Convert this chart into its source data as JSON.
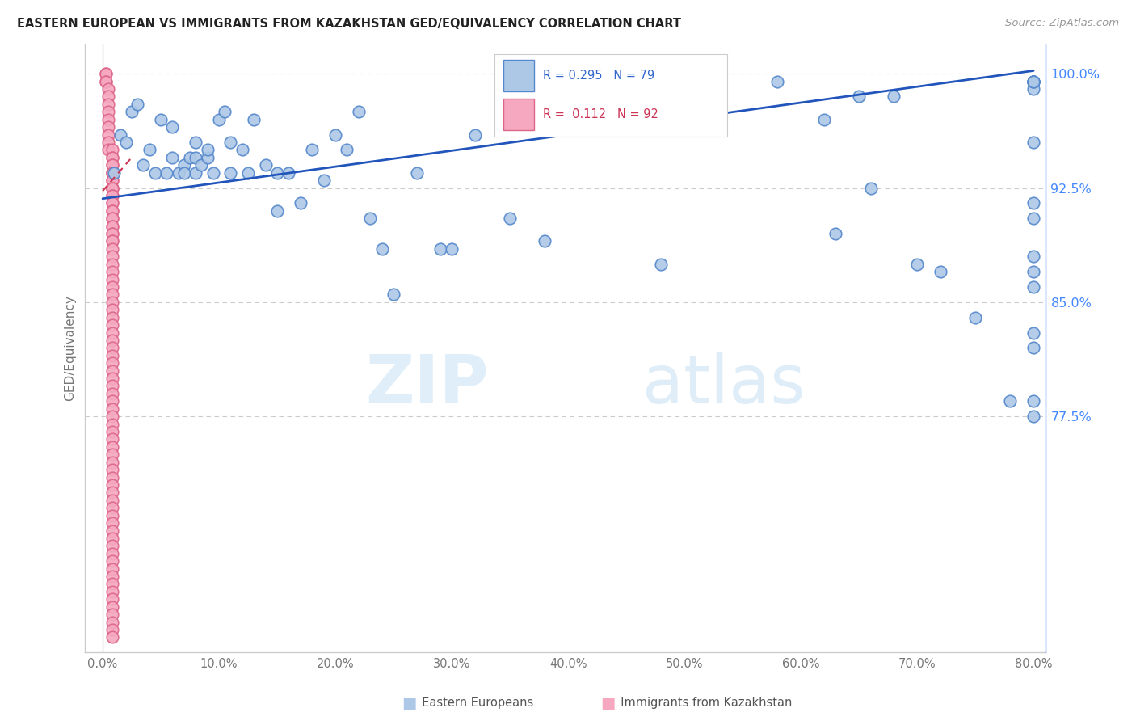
{
  "title": "EASTERN EUROPEAN VS IMMIGRANTS FROM KAZAKHSTAN GED/EQUIVALENCY CORRELATION CHART",
  "source": "Source: ZipAtlas.com",
  "ylabel": "GED/Equivalency",
  "R_blue": 0.295,
  "N_blue": 79,
  "R_pink": 0.112,
  "N_pink": 92,
  "blue_color": "#adc8e6",
  "pink_color": "#f5a8c0",
  "blue_edge": "#5588cc",
  "pink_edge": "#dd6688",
  "trend_blue": "#2255bb",
  "trend_pink": "#cc3355",
  "legend_blue": "Eastern Europeans",
  "legend_pink": "Immigrants from Kazakhstan",
  "blue_x": [
    1.0,
    1.5,
    2.0,
    2.5,
    3.0,
    3.5,
    4.0,
    4.5,
    5.0,
    5.5,
    6.0,
    6.0,
    6.5,
    7.0,
    7.0,
    7.5,
    8.0,
    8.0,
    8.0,
    8.5,
    9.0,
    9.0,
    9.5,
    10.0,
    10.5,
    11.0,
    11.0,
    12.0,
    12.5,
    13.0,
    14.0,
    15.0,
    15.0,
    16.0,
    17.0,
    18.0,
    19.0,
    20.0,
    21.0,
    22.0,
    23.0,
    24.0,
    25.0,
    27.0,
    29.0,
    30.0,
    32.0,
    35.0,
    38.0,
    40.0,
    42.0,
    48.0,
    52.0,
    58.0,
    62.0,
    63.0,
    65.0,
    66.0,
    68.0,
    70.0,
    72.0,
    75.0,
    78.0,
    80.0,
    80.0,
    80.0,
    80.0,
    80.0,
    80.0,
    80.0,
    80.0,
    80.0,
    80.0,
    80.0,
    80.0,
    80.0,
    80.0,
    80.0,
    80.0
  ],
  "blue_y": [
    93.5,
    96.0,
    95.5,
    97.5,
    98.0,
    94.0,
    95.0,
    93.5,
    97.0,
    93.5,
    94.5,
    96.5,
    93.5,
    94.0,
    93.5,
    94.5,
    95.5,
    93.5,
    94.5,
    94.0,
    94.5,
    95.0,
    93.5,
    97.0,
    97.5,
    95.5,
    93.5,
    95.0,
    93.5,
    97.0,
    94.0,
    91.0,
    93.5,
    93.5,
    91.5,
    95.0,
    93.0,
    96.0,
    95.0,
    97.5,
    90.5,
    88.5,
    85.5,
    93.5,
    88.5,
    88.5,
    96.0,
    90.5,
    89.0,
    97.0,
    98.0,
    87.5,
    99.0,
    99.5,
    97.0,
    89.5,
    98.5,
    92.5,
    98.5,
    87.5,
    87.0,
    84.0,
    78.5,
    78.5,
    77.5,
    82.0,
    90.5,
    87.0,
    86.0,
    83.0,
    88.0,
    91.5,
    95.5,
    99.5,
    99.5,
    99.5,
    99.0,
    99.5,
    99.5
  ],
  "pink_x": [
    0.3,
    0.3,
    0.3,
    0.3,
    0.5,
    0.5,
    0.5,
    0.5,
    0.5,
    0.5,
    0.5,
    0.5,
    0.5,
    0.8,
    0.8,
    0.8,
    0.8,
    0.8,
    0.8,
    0.8,
    0.8,
    0.8,
    0.8,
    0.8,
    0.8,
    0.8,
    0.8,
    0.8,
    0.8,
    0.8,
    0.8,
    0.8,
    0.8,
    0.8,
    0.8,
    0.8,
    0.8,
    0.8,
    0.8,
    0.8,
    0.8,
    0.8,
    0.8,
    0.8,
    0.8,
    0.8,
    0.8,
    0.8,
    0.8,
    0.8,
    0.8,
    0.8,
    0.8,
    0.8,
    0.8,
    0.8,
    0.8,
    0.8,
    0.8,
    0.8,
    0.8,
    0.8,
    0.8,
    0.8,
    0.8,
    0.8,
    0.8,
    0.8,
    0.8,
    0.8,
    0.8,
    0.8,
    0.8,
    0.8,
    0.8,
    0.8,
    0.8,
    0.8,
    0.8,
    0.8,
    0.8,
    0.8,
    0.8,
    0.8,
    0.8,
    0.8,
    0.8,
    0.8,
    0.8,
    0.8,
    0.8,
    0.8
  ],
  "pink_y": [
    100.0,
    100.0,
    99.5,
    99.5,
    99.0,
    98.5,
    98.0,
    97.5,
    97.0,
    96.5,
    96.0,
    95.5,
    95.0,
    95.0,
    94.5,
    94.5,
    94.0,
    94.0,
    93.5,
    93.5,
    93.5,
    93.0,
    93.0,
    92.5,
    92.5,
    92.5,
    92.0,
    92.0,
    91.5,
    91.5,
    91.0,
    91.0,
    90.5,
    90.5,
    90.0,
    90.0,
    89.5,
    89.5,
    89.0,
    89.0,
    88.5,
    88.0,
    87.5,
    87.0,
    86.5,
    86.0,
    85.5,
    85.0,
    84.5,
    84.0,
    83.5,
    83.0,
    82.5,
    82.0,
    81.5,
    81.0,
    80.5,
    80.0,
    79.5,
    79.0,
    78.5,
    78.0,
    77.5,
    77.0,
    76.5,
    76.0,
    75.5,
    75.0,
    74.5,
    74.0,
    73.5,
    73.0,
    72.5,
    72.0,
    71.5,
    71.0,
    70.5,
    70.0,
    69.5,
    69.0,
    68.5,
    68.0,
    67.5,
    67.0,
    66.5,
    66.0,
    65.5,
    65.0,
    64.5,
    64.0,
    63.5,
    63.0
  ],
  "xmin": 0.0,
  "xmax": 80.0,
  "ymin": 62.0,
  "ymax": 102.0,
  "ytick_vals": [
    77.5,
    85.0,
    92.5,
    100.0
  ],
  "ytick_labels": [
    "77.5%",
    "85.0%",
    "92.5%",
    "100.0%"
  ],
  "xtick_vals": [
    0.0,
    10.0,
    20.0,
    30.0,
    40.0,
    50.0,
    60.0,
    70.0,
    80.0
  ],
  "xtick_labels": [
    "0.0%",
    "10.0%",
    "20.0%",
    "30.0%",
    "40.0%",
    "50.0%",
    "60.0%",
    "70.0%",
    "80.0%"
  ],
  "blue_trend_x": [
    0,
    80
  ],
  "blue_trend_y": [
    91.8,
    100.2
  ],
  "pink_trend_x": [
    0,
    2.5
  ],
  "pink_trend_y": [
    92.3,
    94.5
  ]
}
